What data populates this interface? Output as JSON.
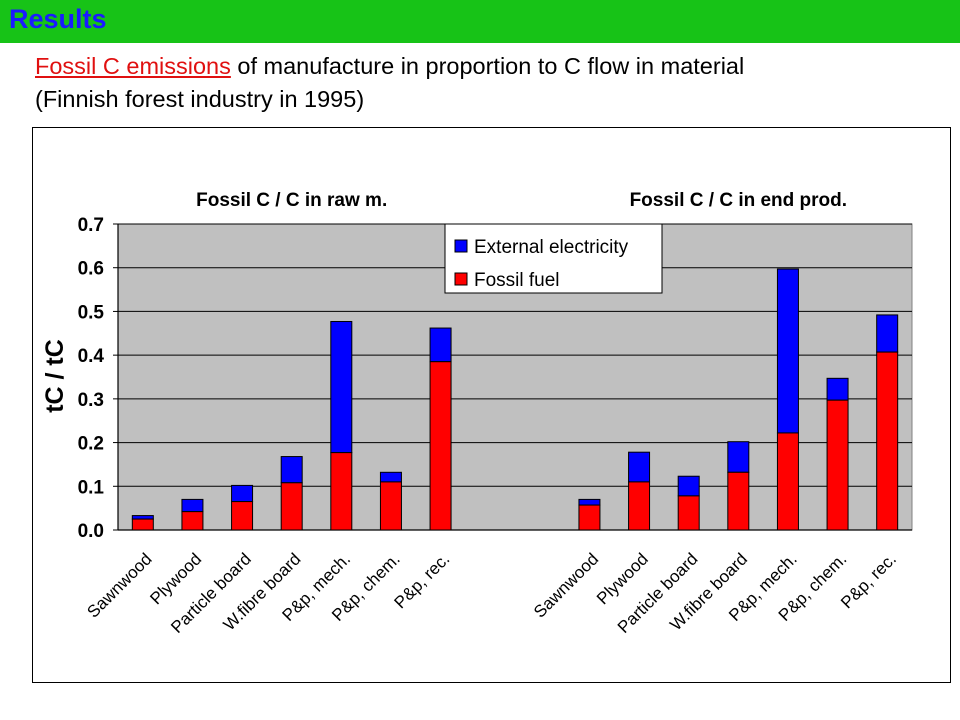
{
  "header": {
    "title": "Results"
  },
  "subtitle": {
    "link_text": "Fossil C emissions",
    "rest_line1": " of manufacture in proportion to C flow in material",
    "line2": "(Finnish forest industry in 1995)"
  },
  "colors": {
    "header_bg": "#17c317",
    "title": "#1a1aff",
    "link": "#e01010",
    "plot_bg": "#c0c0c0",
    "external_electricity": "#0000ff",
    "fossil_fuel": "#ff0000"
  },
  "chart_data": {
    "type": "bar",
    "stacked": true,
    "ylabel": "tC / tC",
    "xlabel": "",
    "ylim": [
      0,
      0.7
    ],
    "yticks": [
      "0.0",
      "0.1",
      "0.2",
      "0.3",
      "0.4",
      "0.5",
      "0.6",
      "0.7"
    ],
    "grid": true,
    "legend_position": "top-center",
    "groups": [
      {
        "title": "Fossil C / C in raw m.",
        "categories": [
          "Sawnwood",
          "Plywood",
          "Particle board",
          "W.fibre board",
          "P&p, mech.",
          "P&p, chem.",
          "P&p, rec."
        ],
        "series": [
          {
            "name": "Fossil fuel",
            "values": [
              0.025,
              0.042,
              0.065,
              0.108,
              0.177,
              0.11,
              0.385
            ]
          },
          {
            "name": "External electricity",
            "values": [
              0.008,
              0.028,
              0.037,
              0.06,
              0.3,
              0.022,
              0.077
            ]
          }
        ]
      },
      {
        "title": "Fossil C / C in end prod.",
        "categories": [
          "Sawnwood",
          "Plywood",
          "Particle board",
          "W.fibre board",
          "P&p, mech.",
          "P&p, chem.",
          "P&p, rec."
        ],
        "series": [
          {
            "name": "Fossil fuel",
            "values": [
              0.057,
              0.11,
              0.078,
              0.132,
              0.222,
              0.297,
              0.407
            ]
          },
          {
            "name": "External electricity",
            "values": [
              0.013,
              0.068,
              0.045,
              0.07,
              0.375,
              0.05,
              0.085
            ]
          }
        ]
      }
    ],
    "legend": [
      "External electricity",
      "Fossil fuel"
    ]
  }
}
